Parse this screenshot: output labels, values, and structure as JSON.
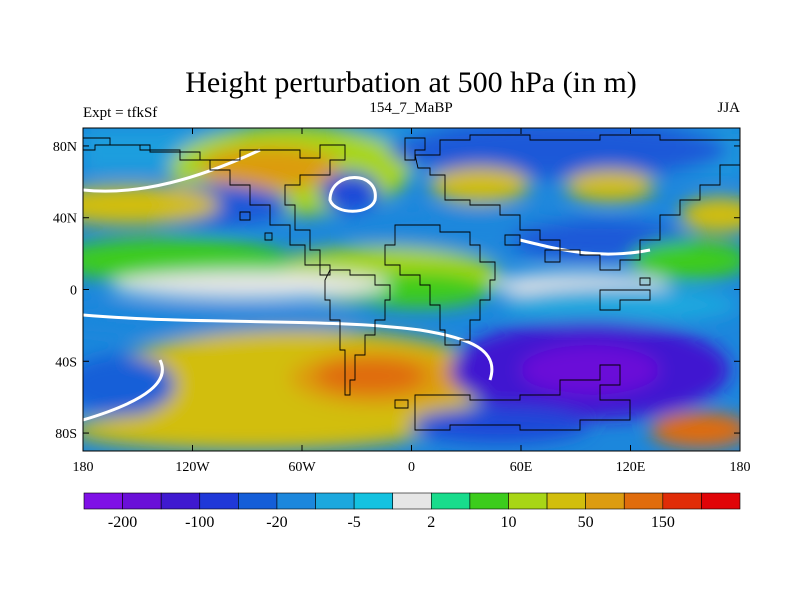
{
  "title": "Height perturbation at 500 hPa (in m)",
  "left_label": "Expt = tfkSf",
  "center_label": "154_7_MaBP",
  "right_label": "JJA",
  "map": {
    "lon_range": [
      -180,
      180
    ],
    "lat_range": [
      -90,
      90
    ],
    "lat_ticks": [
      {
        "value": 80,
        "label": "80N"
      },
      {
        "value": 40,
        "label": "40N"
      },
      {
        "value": 0,
        "label": "0"
      },
      {
        "value": -40,
        "label": "40S"
      },
      {
        "value": -80,
        "label": "80S"
      }
    ],
    "lon_ticks": [
      {
        "value": -180,
        "label": "180"
      },
      {
        "value": -120,
        "label": "120W"
      },
      {
        "value": -60,
        "label": "60W"
      },
      {
        "value": 0,
        "label": "0"
      },
      {
        "value": 60,
        "label": "60E"
      },
      {
        "value": 120,
        "label": "120E"
      },
      {
        "value": 180,
        "label": "180"
      }
    ]
  },
  "colorbar": {
    "colors": [
      "#7f10e6",
      "#6a0fd8",
      "#3f19d0",
      "#1f38d8",
      "#145ed8",
      "#1c87dc",
      "#1ca8de",
      "#14c2e0",
      "#e6e6e6",
      "#18dc8c",
      "#3ccc1c",
      "#a8d616",
      "#d2be0c",
      "#dc9c10",
      "#e06c0c",
      "#e02c08",
      "#e00408"
    ],
    "labels": [
      {
        "boundary": 1,
        "text": "-200"
      },
      {
        "boundary": 3,
        "text": "-100"
      },
      {
        "boundary": 5,
        "text": "-20"
      },
      {
        "boundary": 7,
        "text": "-5"
      },
      {
        "boundary": 9,
        "text": "2"
      },
      {
        "boundary": 11,
        "text": "10"
      },
      {
        "boundary": 13,
        "text": "50"
      },
      {
        "boundary": 15,
        "text": "150"
      }
    ]
  }
}
